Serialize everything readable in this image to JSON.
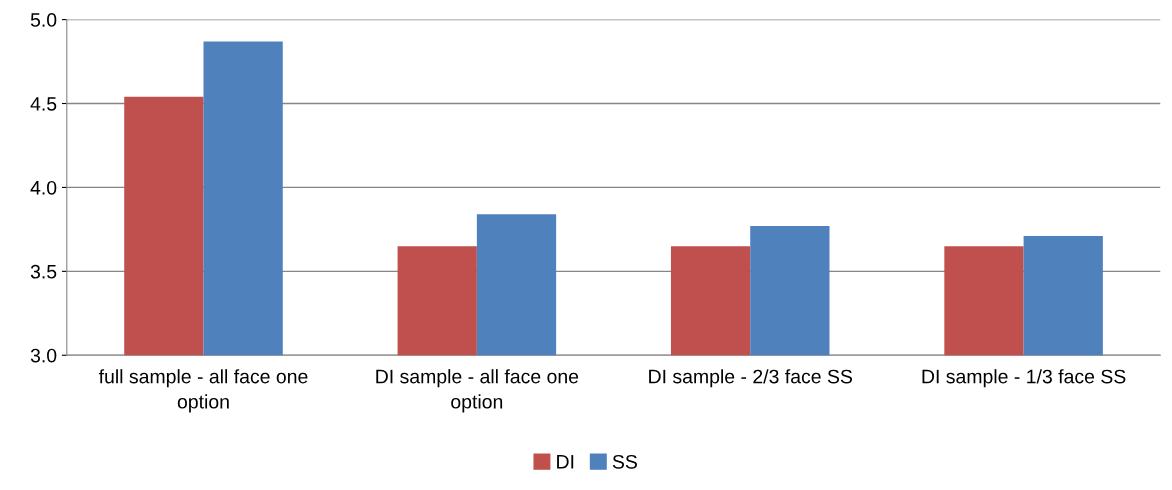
{
  "chart_data": {
    "type": "bar",
    "categories": [
      "full sample - all face one option",
      "DI sample - all face one option",
      "DI sample - 2/3 face SS",
      "DI sample - 1/3 face SS"
    ],
    "series": [
      {
        "name": "DI",
        "color": "#c0504d",
        "values": [
          4.54,
          3.65,
          3.65,
          3.65
        ]
      },
      {
        "name": "SS",
        "color": "#4f81bd",
        "values": [
          4.87,
          3.84,
          3.77,
          3.71
        ]
      }
    ],
    "ylim": [
      3.0,
      5.0
    ],
    "yticks": [
      {
        "value": 3.0,
        "label": "3.0"
      },
      {
        "value": 3.5,
        "label": "3.5"
      },
      {
        "value": 4.0,
        "label": "4.0"
      },
      {
        "value": 4.5,
        "label": "4.5"
      },
      {
        "value": 5.0,
        "label": "5.0"
      }
    ],
    "grid": "y",
    "legend": "bottom"
  }
}
